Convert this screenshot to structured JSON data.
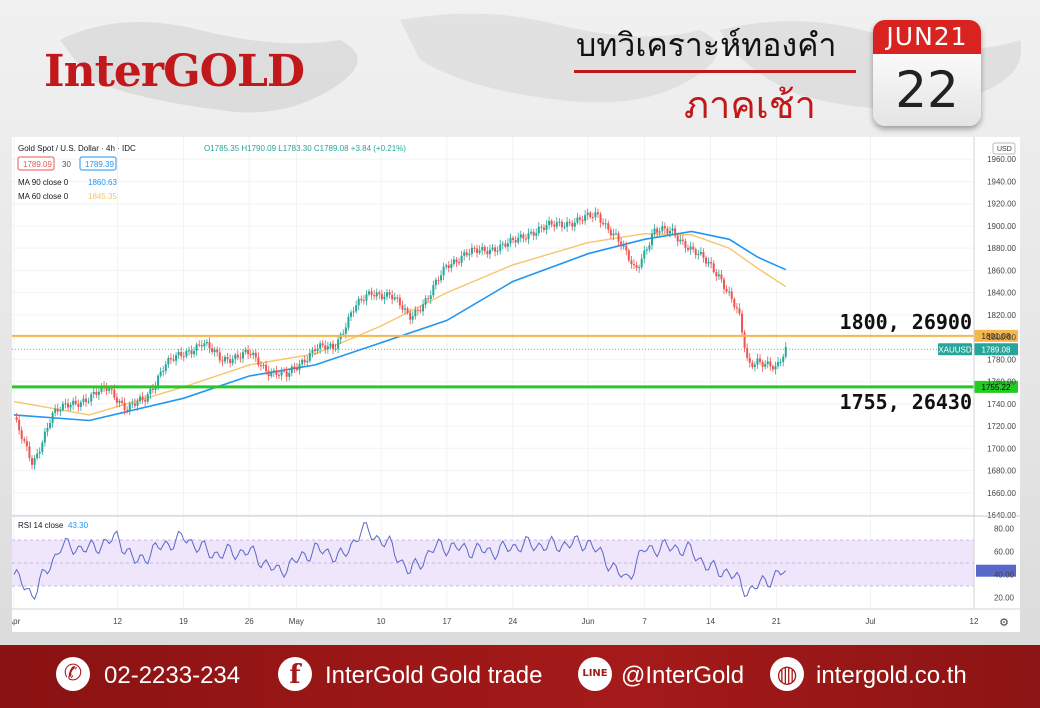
{
  "brand": {
    "logo": "InterGOLD"
  },
  "header": {
    "title": "บทวิเคราะห์ทองคำ",
    "subtitle": "ภาคเช้า"
  },
  "calendar": {
    "month": "JUN21",
    "day": "22"
  },
  "chart_header": {
    "symbol": "Gold Spot / U.S. Dollar · 4h · IDC",
    "ohlc": "O1785.35 H1790.09 L1783.30 C1789.08 +3.84 (+0.21%)",
    "bid": "1789.09",
    "spread": "30",
    "ask": "1789.39",
    "ma90_label": "MA 90 close 0",
    "ma90_value": "1860.63",
    "ma60_label": "MA 60 close 0",
    "ma60_value": "1845.35",
    "rsi_label": "RSI 14 close",
    "rsi_value": "43.30",
    "currency": "USD"
  },
  "annotations": {
    "resistance": "1800, 26900",
    "support": "1755, 26430"
  },
  "price_tags": {
    "resistance": "1801.08",
    "current_symbol": "XAUUSD",
    "current": "1789.08",
    "support": "1755.22"
  },
  "colors": {
    "up": "#26a69a",
    "down": "#ef5350",
    "ma90": "#2196f3",
    "ma60": "#f7c56b",
    "resistance": "#f5b74d",
    "support": "#22cc22",
    "rsi": "#5867c9",
    "brand_red": "#c0181b"
  },
  "chart_data": [
    {
      "type": "candlestick",
      "title": "Gold Spot / U.S. Dollar · 4h · IDC",
      "ylim": [
        1640,
        1980
      ],
      "y_ticks": [
        "1640.00",
        "1660.00",
        "1680.00",
        "1700.00",
        "1720.00",
        "1740.00",
        "1760.00",
        "1780.00",
        "1800.00",
        "1820.00",
        "1840.00",
        "1860.00",
        "1880.00",
        "1900.00",
        "1920.00",
        "1940.00",
        "1960.00"
      ],
      "x_ticks": [
        "Apr",
        "12",
        "19",
        "26",
        "May",
        "10",
        "17",
        "24",
        "Jun",
        "7",
        "14",
        "21",
        "Jul",
        "12"
      ],
      "close_path": [
        {
          "x": "Apr 1",
          "y": 1728
        },
        {
          "x": "Apr 2",
          "y": 1705
        },
        {
          "x": "Apr 3",
          "y": 1685
        },
        {
          "x": "Apr 5",
          "y": 1730
        },
        {
          "x": "Apr 7",
          "y": 1740
        },
        {
          "x": "Apr 9",
          "y": 1745
        },
        {
          "x": "Apr 11",
          "y": 1755
        },
        {
          "x": "Apr 13",
          "y": 1735
        },
        {
          "x": "Apr 15",
          "y": 1745
        },
        {
          "x": "Apr 17",
          "y": 1775
        },
        {
          "x": "Apr 19",
          "y": 1785
        },
        {
          "x": "Apr 21",
          "y": 1795
        },
        {
          "x": "Apr 23",
          "y": 1780
        },
        {
          "x": "Apr 26",
          "y": 1785
        },
        {
          "x": "Apr 28",
          "y": 1770
        },
        {
          "x": "Apr 30",
          "y": 1765
        },
        {
          "x": "May 3",
          "y": 1790
        },
        {
          "x": "May 5",
          "y": 1790
        },
        {
          "x": "May 7",
          "y": 1825
        },
        {
          "x": "May 9",
          "y": 1840
        },
        {
          "x": "May 11",
          "y": 1838
        },
        {
          "x": "May 13",
          "y": 1818
        },
        {
          "x": "May 15",
          "y": 1835
        },
        {
          "x": "May 17",
          "y": 1865
        },
        {
          "x": "May 19",
          "y": 1875
        },
        {
          "x": "May 21",
          "y": 1878
        },
        {
          "x": "May 24",
          "y": 1885
        },
        {
          "x": "May 26",
          "y": 1895
        },
        {
          "x": "May 28",
          "y": 1900
        },
        {
          "x": "May 31",
          "y": 1905
        },
        {
          "x": "Jun 2",
          "y": 1910
        },
        {
          "x": "Jun 4",
          "y": 1890
        },
        {
          "x": "Jun 6",
          "y": 1860
        },
        {
          "x": "Jun 8",
          "y": 1895
        },
        {
          "x": "Jun 10",
          "y": 1895
        },
        {
          "x": "Jun 12",
          "y": 1878
        },
        {
          "x": "Jun 14",
          "y": 1865
        },
        {
          "x": "Jun 15",
          "y": 1855
        },
        {
          "x": "Jun 17",
          "y": 1820
        },
        {
          "x": "Jun 18",
          "y": 1775
        },
        {
          "x": "Jun 19",
          "y": 1780
        },
        {
          "x": "Jun 21",
          "y": 1770
        },
        {
          "x": "Jun 22",
          "y": 1789
        }
      ],
      "ma90": [
        {
          "x": "Apr 1",
          "y": 1730
        },
        {
          "x": "Apr 9",
          "y": 1725
        },
        {
          "x": "Apr 19",
          "y": 1745
        },
        {
          "x": "Apr 26",
          "y": 1765
        },
        {
          "x": "May 3",
          "y": 1775
        },
        {
          "x": "May 10",
          "y": 1795
        },
        {
          "x": "May 17",
          "y": 1815
        },
        {
          "x": "May 24",
          "y": 1850
        },
        {
          "x": "Jun 1",
          "y": 1875
        },
        {
          "x": "Jun 7",
          "y": 1888
        },
        {
          "x": "Jun 12",
          "y": 1895
        },
        {
          "x": "Jun 16",
          "y": 1888
        },
        {
          "x": "Jun 19",
          "y": 1872
        },
        {
          "x": "Jun 22",
          "y": 1860.63
        }
      ],
      "ma60": [
        {
          "x": "Apr 1",
          "y": 1742
        },
        {
          "x": "Apr 9",
          "y": 1730
        },
        {
          "x": "Apr 19",
          "y": 1755
        },
        {
          "x": "Apr 26",
          "y": 1775
        },
        {
          "x": "May 3",
          "y": 1785
        },
        {
          "x": "May 10",
          "y": 1810
        },
        {
          "x": "May 17",
          "y": 1840
        },
        {
          "x": "May 24",
          "y": 1865
        },
        {
          "x": "Jun 1",
          "y": 1885
        },
        {
          "x": "Jun 7",
          "y": 1893
        },
        {
          "x": "Jun 12",
          "y": 1892
        },
        {
          "x": "Jun 16",
          "y": 1880
        },
        {
          "x": "Jun 19",
          "y": 1862
        },
        {
          "x": "Jun 22",
          "y": 1845.35
        }
      ],
      "levels": [
        1801.08,
        1755.22
      ]
    },
    {
      "type": "line",
      "title": "RSI 14 close",
      "ylim": [
        10,
        90
      ],
      "y_ticks": [
        "20.00",
        "40.00",
        "60.00",
        "80.00"
      ],
      "band": [
        30,
        70
      ],
      "values": [
        {
          "x": "Apr 1",
          "y": 40
        },
        {
          "x": "Apr 3",
          "y": 22
        },
        {
          "x": "Apr 6",
          "y": 65
        },
        {
          "x": "Apr 9",
          "y": 62
        },
        {
          "x": "Apr 12",
          "y": 72
        },
        {
          "x": "Apr 14",
          "y": 50
        },
        {
          "x": "Apr 16",
          "y": 62
        },
        {
          "x": "Apr 19",
          "y": 72
        },
        {
          "x": "Apr 22",
          "y": 58
        },
        {
          "x": "Apr 26",
          "y": 60
        },
        {
          "x": "Apr 29",
          "y": 42
        },
        {
          "x": "May 3",
          "y": 62
        },
        {
          "x": "May 6",
          "y": 55
        },
        {
          "x": "May 8",
          "y": 80
        },
        {
          "x": "May 11",
          "y": 65
        },
        {
          "x": "May 13",
          "y": 42
        },
        {
          "x": "May 16",
          "y": 65
        },
        {
          "x": "May 19",
          "y": 62
        },
        {
          "x": "May 22",
          "y": 60
        },
        {
          "x": "May 25",
          "y": 66
        },
        {
          "x": "May 28",
          "y": 65
        },
        {
          "x": "Jun 1",
          "y": 68
        },
        {
          "x": "Jun 3",
          "y": 52
        },
        {
          "x": "Jun 5",
          "y": 35
        },
        {
          "x": "Jun 7",
          "y": 62
        },
        {
          "x": "Jun 10",
          "y": 64
        },
        {
          "x": "Jun 12",
          "y": 60
        },
        {
          "x": "Jun 14",
          "y": 45
        },
        {
          "x": "Jun 16",
          "y": 42
        },
        {
          "x": "Jun 18",
          "y": 25
        },
        {
          "x": "Jun 20",
          "y": 35
        },
        {
          "x": "Jun 22",
          "y": 43.3
        }
      ]
    }
  ],
  "footer": {
    "phone": "02-2233-234",
    "facebook": "InterGold Gold trade",
    "line": "@InterGold",
    "website": "intergold.co.th",
    "line_icon_text": "LINE",
    "fb_icon_text": "f"
  }
}
